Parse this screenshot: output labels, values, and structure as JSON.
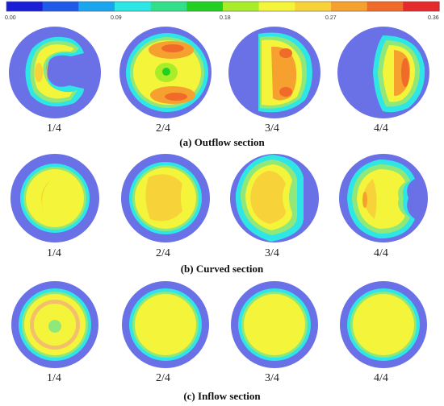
{
  "colorbar": {
    "ticks": [
      "0.00",
      "0.09",
      "0.18",
      "0.27",
      "0.36"
    ],
    "colors": [
      "#1a1fd6",
      "#1f5ae8",
      "#19a6ee",
      "#2de6e6",
      "#33e08a",
      "#22d022",
      "#a8ec2a",
      "#f4f53a",
      "#f7d239",
      "#f6a030",
      "#f06a2a",
      "#e42a2a"
    ]
  },
  "rows": [
    {
      "caption": "(a) Outflow section",
      "panels": [
        {
          "label": "1/4",
          "pattern": "c-shape"
        },
        {
          "label": "2/4",
          "pattern": "ring-with-hot-lobes"
        },
        {
          "label": "3/4",
          "pattern": "right-lobe-bulge"
        },
        {
          "label": "4/4",
          "pattern": "d-shape"
        }
      ]
    },
    {
      "caption": "(b) Curved section",
      "panels": [
        {
          "label": "1/4",
          "pattern": "faint-crescent"
        },
        {
          "label": "2/4",
          "pattern": "uniform-orange-core"
        },
        {
          "label": "3/4",
          "pattern": "left-shifted-core"
        },
        {
          "label": "4/4",
          "pattern": "bean-shape"
        }
      ]
    },
    {
      "caption": "(c) Inflow section",
      "panels": [
        {
          "label": "1/4",
          "pattern": "concentric-rings"
        },
        {
          "label": "2/4",
          "pattern": "uniform-yellow"
        },
        {
          "label": "3/4",
          "pattern": "uniform-yellow"
        },
        {
          "label": "4/4",
          "pattern": "uniform-yellow"
        }
      ]
    }
  ]
}
